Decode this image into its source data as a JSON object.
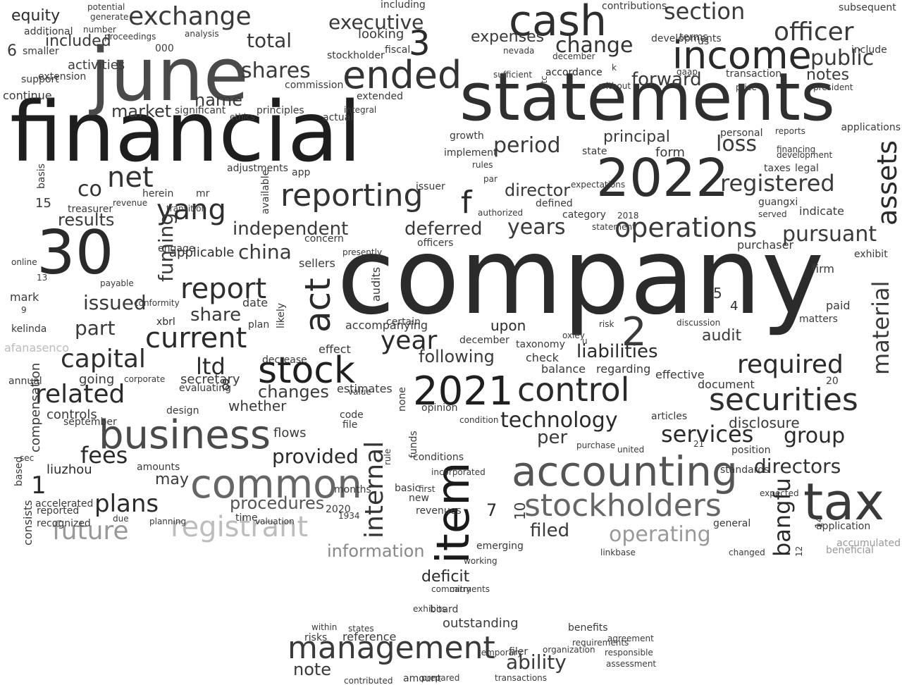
{
  "words": [
    {
      "text": "company",
      "color": "#2b2b2b"
    },
    {
      "text": "financial",
      "color": "#1e1e1e"
    },
    {
      "text": "statements",
      "color": "#2f2f2f"
    },
    {
      "text": "june",
      "color": "#4a4a4a"
    },
    {
      "text": "2022",
      "color": "#2e2e2e"
    },
    {
      "text": "2021",
      "color": "#1f1f1f"
    },
    {
      "text": "30",
      "color": "#2a2a2a"
    },
    {
      "text": "cash",
      "color": "#2e2e2e"
    },
    {
      "text": "income",
      "color": "#2a2a2a"
    },
    {
      "text": "ended",
      "color": "#333333"
    },
    {
      "text": "item",
      "color": "#1a1a1a"
    },
    {
      "text": "tax",
      "color": "#3a3a3a"
    },
    {
      "text": "accounting",
      "color": "#555555"
    },
    {
      "text": "common",
      "color": "#666666"
    },
    {
      "text": "business",
      "color": "#4a4a4a"
    },
    {
      "text": "stock",
      "color": "#1f1f1f"
    },
    {
      "text": "control",
      "color": "#2a2a2a"
    },
    {
      "text": "securities",
      "color": "#2e2e2e"
    },
    {
      "text": "stockholders",
      "color": "#666666"
    },
    {
      "text": "registrant",
      "color": "#bdbdbd"
    },
    {
      "text": "management",
      "color": "#3a3a3a"
    },
    {
      "text": "exchange",
      "color": "#3a3a3a"
    },
    {
      "text": "officer",
      "color": "#3a3a3a"
    },
    {
      "text": "section",
      "color": "#3a3a3a"
    },
    {
      "text": "reporting",
      "color": "#333333"
    },
    {
      "text": "operations",
      "color": "#3a3a3a"
    },
    {
      "text": "executive",
      "color": "#3a3a3a"
    },
    {
      "text": "public",
      "color": "#3a3a3a"
    },
    {
      "text": "change",
      "color": "#333333"
    },
    {
      "text": "net",
      "color": "#333333"
    },
    {
      "text": "yang",
      "color": "#2e2e2e"
    },
    {
      "text": "report",
      "color": "#2e2e2e"
    },
    {
      "text": "current",
      "color": "#2a2a2a"
    },
    {
      "text": "capital",
      "color": "#2e2e2e"
    },
    {
      "text": "related",
      "color": "#2a2a2a"
    },
    {
      "text": "plans",
      "color": "#2a2a2a"
    },
    {
      "text": "fees",
      "color": "#2a2a2a"
    },
    {
      "text": "future",
      "color": "#999999"
    },
    {
      "text": "required",
      "color": "#2a2a2a"
    },
    {
      "text": "registered",
      "color": "#3a3a3a"
    },
    {
      "text": "pursuant",
      "color": "#3a3a3a"
    },
    {
      "text": "act",
      "color": "#2a2a2a"
    },
    {
      "text": "assets",
      "color": "#2a2a2a"
    },
    {
      "text": "material",
      "color": "#3a3a3a"
    },
    {
      "text": "internal",
      "color": "#333333"
    },
    {
      "text": "bangfu",
      "color": "#2a2a2a"
    },
    {
      "text": "year",
      "color": "#2a2a2a"
    },
    {
      "text": "technology",
      "color": "#2a2a2a"
    },
    {
      "text": "services",
      "color": "#2a2a2a"
    },
    {
      "text": "directors",
      "color": "#333333"
    },
    {
      "text": "liabilities",
      "color": "#2a2a2a"
    },
    {
      "text": "independent",
      "color": "#3a3a3a"
    },
    {
      "text": "years",
      "color": "#3a3a3a"
    },
    {
      "text": "operating",
      "color": "#999999"
    },
    {
      "text": "group",
      "color": "#2a2a2a"
    },
    {
      "text": "procedures",
      "color": "#555555"
    },
    {
      "text": "ltd",
      "color": "#2a2a2a"
    },
    {
      "text": "shares",
      "color": "#3a3a3a"
    },
    {
      "text": "loss",
      "color": "#3a3a3a"
    },
    {
      "text": "period",
      "color": "#3a3a3a"
    },
    {
      "text": "total",
      "color": "#3a3a3a"
    },
    {
      "text": "provided",
      "color": "#2a2a2a"
    },
    {
      "text": "ability",
      "color": "#3a3a3a"
    },
    {
      "text": "deferred",
      "color": "#3a3a3a"
    },
    {
      "text": "forward",
      "color": "#3a3a3a"
    },
    {
      "text": "results",
      "color": "#3a3a3a"
    },
    {
      "text": "china",
      "color": "#3a3a3a"
    },
    {
      "text": "changes",
      "color": "#3a3a3a"
    },
    {
      "text": "information",
      "color": "#888888"
    },
    {
      "text": "filed",
      "color": "#3a3a3a"
    },
    {
      "text": "fuming",
      "color": "#3a3a3a"
    },
    {
      "text": "co",
      "color": "#333333"
    },
    {
      "text": "market",
      "color": "#3a3a3a"
    },
    {
      "text": "name",
      "color": "#3a3a3a"
    },
    {
      "text": "director",
      "color": "#3a3a3a"
    },
    {
      "text": "principal",
      "color": "#3a3a3a"
    },
    {
      "text": "expenses",
      "color": "#3a3a3a"
    },
    {
      "text": "equity",
      "color": "#2a2a2a"
    },
    {
      "text": "share",
      "color": "#3a3a3a"
    },
    {
      "text": "part",
      "color": "#3a3a3a"
    },
    {
      "text": "following",
      "color": "#3a3a3a"
    },
    {
      "text": "outstanding",
      "color": "#3a3a3a"
    },
    {
      "text": "deficit",
      "color": "#2a2a2a"
    },
    {
      "text": "note",
      "color": "#3a3a3a"
    },
    {
      "text": "may",
      "color": "#3a3a3a"
    },
    {
      "text": "liuzhou",
      "color": "#2a2a2a"
    },
    {
      "text": "disclosure",
      "color": "#3a3a3a"
    },
    {
      "text": "upon",
      "color": "#2a2a2a"
    },
    {
      "text": "per",
      "color": "#3a3a3a"
    },
    {
      "text": "audit",
      "color": "#3a3a3a"
    },
    {
      "text": "applicable",
      "color": "#2a2a2a"
    },
    {
      "text": "included",
      "color": "#3a3a3a"
    },
    {
      "text": "looking",
      "color": "#3a3a3a"
    },
    {
      "text": "notes",
      "color": "#3a3a3a"
    },
    {
      "text": "whether",
      "color": "#3a3a3a"
    },
    {
      "text": "controls",
      "color": "#3a3a3a"
    },
    {
      "text": "flows",
      "color": "#3a3a3a"
    },
    {
      "text": "compensation",
      "color": "#3a3a3a"
    },
    {
      "text": "activities",
      "color": "#3a3a3a"
    },
    {
      "text": "form",
      "color": "#3a3a3a"
    },
    {
      "text": "issued",
      "color": "#3a3a3a"
    },
    {
      "text": "f",
      "color": "#2a2a2a"
    },
    {
      "text": "2",
      "color": "#3a3a3a"
    },
    {
      "text": "3",
      "color": "#2a2a2a"
    },
    {
      "text": "1",
      "color": "#2a2a2a"
    },
    {
      "text": "7",
      "color": "#2a2a2a"
    },
    {
      "text": "8",
      "color": "#2a2a2a"
    },
    {
      "text": "15",
      "color": "#3a3a3a"
    },
    {
      "text": "5",
      "color": "#3a3a3a"
    },
    {
      "text": "6",
      "color": "#3a3a3a"
    },
    {
      "text": "4",
      "color": "#2a2a2a"
    },
    {
      "text": "10",
      "color": "#3a3a3a"
    },
    {
      "text": "000",
      "color": "#3a3a3a"
    },
    {
      "text": "transaction",
      "color": "#3a3a3a"
    },
    {
      "text": "commission",
      "color": "#3a3a3a"
    },
    {
      "text": "including",
      "color": "#3a3a3a"
    },
    {
      "text": "contributions",
      "color": "#3a3a3a"
    },
    {
      "text": "stockholder",
      "color": "#3a3a3a"
    },
    {
      "text": "fiscal",
      "color": "#3a3a3a"
    },
    {
      "text": "continue",
      "color": "#3a3a3a"
    },
    {
      "text": "accordance",
      "color": "#2a2a2a"
    },
    {
      "text": "state",
      "color": "#3a3a3a"
    },
    {
      "text": "financing",
      "color": "#3a3a3a"
    },
    {
      "text": "reports",
      "color": "#3a3a3a"
    },
    {
      "text": "taxes",
      "color": "#3a3a3a"
    },
    {
      "text": "legal",
      "color": "#3a3a3a"
    },
    {
      "text": "guangxi",
      "color": "#3a3a3a"
    },
    {
      "text": "indicate",
      "color": "#3a3a3a"
    },
    {
      "text": "purchaser",
      "color": "#3a3a3a"
    },
    {
      "text": "firm",
      "color": "#3a3a3a"
    },
    {
      "text": "paid",
      "color": "#3a3a3a"
    },
    {
      "text": "check",
      "color": "#3a3a3a"
    },
    {
      "text": "balance",
      "color": "#3a3a3a"
    },
    {
      "text": "regarding",
      "color": "#3a3a3a"
    },
    {
      "text": "effective",
      "color": "#3a3a3a"
    },
    {
      "text": "document",
      "color": "#3a3a3a"
    },
    {
      "text": "certain",
      "color": "#3a3a3a"
    },
    {
      "text": "accompanying",
      "color": "#3a3a3a"
    },
    {
      "text": "effect",
      "color": "#3a3a3a"
    },
    {
      "text": "estimates",
      "color": "#3a3a3a"
    },
    {
      "text": "opinion",
      "color": "#3a3a3a"
    },
    {
      "text": "secretary",
      "color": "#3a3a3a"
    },
    {
      "text": "going",
      "color": "#3a3a3a"
    },
    {
      "text": "xbrl",
      "color": "#2a2a2a"
    },
    {
      "text": "date",
      "color": "#3a3a3a"
    },
    {
      "text": "concern",
      "color": "#3a3a3a"
    },
    {
      "text": "sellers",
      "color": "#3a3a3a"
    },
    {
      "text": "officers",
      "color": "#3a3a3a"
    },
    {
      "text": "board",
      "color": "#3a3a3a"
    },
    {
      "text": "reference",
      "color": "#3a3a3a"
    },
    {
      "text": "filer",
      "color": "#3a3a3a"
    },
    {
      "text": "temporary",
      "color": "#3a3a3a"
    },
    {
      "text": "benefits",
      "color": "#3a3a3a"
    },
    {
      "text": "within",
      "color": "#3a3a3a"
    },
    {
      "text": "risks",
      "color": "#3a3a3a"
    },
    {
      "text": "amounts",
      "color": "#3a3a3a"
    },
    {
      "text": "september",
      "color": "#3a3a3a"
    },
    {
      "text": "design",
      "color": "#3a3a3a"
    },
    {
      "text": "position",
      "color": "#3a3a3a"
    },
    {
      "text": "standards",
      "color": "#3a3a3a"
    },
    {
      "text": "revenues",
      "color": "#3a3a3a"
    },
    {
      "text": "emerging",
      "color": "#3a3a3a"
    },
    {
      "text": "implement",
      "color": "#3a3a3a"
    },
    {
      "text": "growth",
      "color": "#3a3a3a"
    },
    {
      "text": "december",
      "color": "#3a3a3a"
    },
    {
      "text": "taxonomy",
      "color": "#3a3a3a"
    },
    {
      "text": "based",
      "color": "#3a3a3a"
    },
    {
      "text": "accelerated",
      "color": "#3a3a3a"
    },
    {
      "text": "reported",
      "color": "#3a3a3a"
    },
    {
      "text": "recognized",
      "color": "#3a3a3a"
    },
    {
      "text": "consists",
      "color": "#3a3a3a"
    },
    {
      "text": "time",
      "color": "#3a3a3a"
    },
    {
      "text": "new",
      "color": "#3a3a3a"
    },
    {
      "text": "2020",
      "color": "#3a3a3a"
    },
    {
      "text": "1934",
      "color": "#3a3a3a"
    },
    {
      "text": "changed",
      "color": "#3a3a3a"
    },
    {
      "text": "linkbase",
      "color": "#3a3a3a"
    },
    {
      "text": "beneficial",
      "color": "#999999"
    },
    {
      "text": "accumulated",
      "color": "#999999"
    },
    {
      "text": "afanasenco",
      "color": "#bbbbbb"
    },
    {
      "text": "kelinda",
      "color": "#3a3a3a"
    },
    {
      "text": "mark",
      "color": "#3a3a3a"
    },
    {
      "text": "online",
      "color": "#3a3a3a"
    },
    {
      "text": "support",
      "color": "#3a3a3a"
    },
    {
      "text": "extension",
      "color": "#3a3a3a"
    },
    {
      "text": "smaller",
      "color": "#3a3a3a"
    },
    {
      "text": "additional",
      "color": "#3a3a3a"
    },
    {
      "text": "generate",
      "color": "#3a3a3a"
    },
    {
      "text": "number",
      "color": "#3a3a3a"
    },
    {
      "text": "analysis",
      "color": "#3a3a3a"
    },
    {
      "text": "potential",
      "color": "#3a3a3a"
    },
    {
      "text": "proceedings",
      "color": "#3a3a3a"
    },
    {
      "text": "significant",
      "color": "#3a3a3a"
    },
    {
      "text": "principles",
      "color": "#3a3a3a"
    },
    {
      "text": "ethics",
      "color": "#3a3a3a"
    },
    {
      "text": "actual",
      "color": "#3a3a3a"
    },
    {
      "text": "extended",
      "color": "#3a3a3a"
    },
    {
      "text": "integral",
      "color": "#3a3a3a"
    },
    {
      "text": "developments",
      "color": "#3a3a3a"
    },
    {
      "text": "terms",
      "color": "#3a3a3a"
    },
    {
      "text": "us",
      "color": "#3a3a3a"
    },
    {
      "text": "subsequent",
      "color": "#3a3a3a"
    },
    {
      "text": "include",
      "color": "#3a3a3a"
    },
    {
      "text": "applications",
      "color": "#3a3a3a"
    },
    {
      "text": "personal",
      "color": "#3a3a3a"
    },
    {
      "text": "exhibit",
      "color": "#3a3a3a"
    },
    {
      "text": "matters",
      "color": "#3a3a3a"
    },
    {
      "text": "articles",
      "color": "#3a3a3a"
    },
    {
      "text": "conditions",
      "color": "#3a3a3a"
    },
    {
      "text": "file",
      "color": "#3a3a3a"
    },
    {
      "text": "code",
      "color": "#3a3a3a"
    },
    {
      "text": "value",
      "color": "#3a3a3a"
    },
    {
      "text": "funds",
      "color": "#3a3a3a"
    },
    {
      "text": "issuer",
      "color": "#3a3a3a"
    },
    {
      "text": "app",
      "color": "#3a3a3a"
    },
    {
      "text": "rules",
      "color": "#3a3a3a"
    },
    {
      "text": "defined",
      "color": "#3a3a3a"
    },
    {
      "text": "category",
      "color": "#3a3a3a"
    },
    {
      "text": "expected",
      "color": "#3a3a3a"
    },
    {
      "text": "general",
      "color": "#3a3a3a"
    },
    {
      "text": "united",
      "color": "#3a3a3a"
    },
    {
      "text": "purchase",
      "color": "#3a3a3a"
    },
    {
      "text": "application",
      "color": "#3a3a3a"
    },
    {
      "text": "basis",
      "color": "#3a3a3a"
    },
    {
      "text": "available",
      "color": "#3a3a3a"
    },
    {
      "text": "audits",
      "color": "#3a3a3a"
    },
    {
      "text": "plan",
      "color": "#3a3a3a"
    },
    {
      "text": "likely",
      "color": "#3a3a3a"
    },
    {
      "text": "rule",
      "color": "#3a3a3a"
    },
    {
      "text": "none",
      "color": "#3a3a3a"
    },
    {
      "text": "condition",
      "color": "#3a3a3a"
    },
    {
      "text": "incorporated",
      "color": "#3a3a3a"
    },
    {
      "text": "working",
      "color": "#3a3a3a"
    },
    {
      "text": "commitments",
      "color": "#3a3a3a"
    },
    {
      "text": "states",
      "color": "#3a3a3a"
    },
    {
      "text": "prepared",
      "color": "#3a3a3a"
    },
    {
      "text": "transactions",
      "color": "#3a3a3a"
    },
    {
      "text": "contributed",
      "color": "#3a3a3a"
    },
    {
      "text": "organization",
      "color": "#3a3a3a"
    },
    {
      "text": "responsible",
      "color": "#3a3a3a"
    },
    {
      "text": "assessment",
      "color": "#3a3a3a"
    },
    {
      "text": "agreement",
      "color": "#3a3a3a"
    },
    {
      "text": "requirements",
      "color": "#3a3a3a"
    },
    {
      "text": "adjustments",
      "color": "#3a3a3a"
    },
    {
      "text": "herein",
      "color": "#3a3a3a"
    },
    {
      "text": "mr",
      "color": "#3a3a3a"
    },
    {
      "text": "transition",
      "color": "#3a3a3a"
    },
    {
      "text": "revenue",
      "color": "#3a3a3a"
    },
    {
      "text": "treasurer",
      "color": "#3a3a3a"
    },
    {
      "text": "engage",
      "color": "#3a3a3a"
    },
    {
      "text": "decrease",
      "color": "#3a3a3a"
    },
    {
      "text": "13",
      "color": "#3a3a3a"
    },
    {
      "text": "9",
      "color": "#3a3a3a"
    },
    {
      "text": "payable",
      "color": "#3a3a3a"
    },
    {
      "text": "conformity",
      "color": "#3a3a3a"
    },
    {
      "text": "corporate",
      "color": "#3a3a3a"
    },
    {
      "text": "evaluating",
      "color": "#3a3a3a"
    },
    {
      "text": "annual",
      "color": "#3a3a3a"
    },
    {
      "text": "sec",
      "color": "#3a3a3a"
    },
    {
      "text": "due",
      "color": "#3a3a3a"
    },
    {
      "text": "planning",
      "color": "#3a3a3a"
    },
    {
      "text": "valuation",
      "color": "#3a3a3a"
    },
    {
      "text": "months",
      "color": "#3a3a3a"
    },
    {
      "text": "basic",
      "color": "#3a3a3a"
    },
    {
      "text": "presently",
      "color": "#3a3a3a"
    },
    {
      "text": "first",
      "color": "#3a3a3a"
    },
    {
      "text": "carry",
      "color": "#3a3a3a"
    },
    {
      "text": "exhibits",
      "color": "#3a3a3a"
    },
    {
      "text": "14",
      "color": "#3a3a3a"
    },
    {
      "text": "21",
      "color": "#3a3a3a"
    },
    {
      "text": "20",
      "color": "#3a3a3a"
    },
    {
      "text": "12",
      "color": "#3a3a3a"
    },
    {
      "text": "oxley",
      "color": "#3a3a3a"
    },
    {
      "text": "u",
      "color": "#3a3a3a"
    },
    {
      "text": "risk",
      "color": "#3a3a3a"
    },
    {
      "text": "discussion",
      "color": "#3a3a3a"
    },
    {
      "text": "without",
      "color": "#3a3a3a"
    },
    {
      "text": "development",
      "color": "#3a3a3a"
    },
    {
      "text": "amount",
      "color": "#3a3a3a"
    },
    {
      "text": "nevada",
      "color": "#3a3a3a"
    },
    {
      "text": "sufficient",
      "color": "#3a3a3a"
    },
    {
      "text": "december",
      "color": "#3a3a3a"
    },
    {
      "text": "k",
      "color": "#3a3a3a"
    },
    {
      "text": "otc",
      "color": "#3a3a3a"
    },
    {
      "text": "gaap",
      "color": "#3a3a3a"
    },
    {
      "text": "president",
      "color": "#3a3a3a"
    },
    {
      "text": "price",
      "color": "#3a3a3a"
    },
    {
      "text": "statement",
      "color": "#3a3a3a"
    },
    {
      "text": "2018",
      "color": "#3a3a3a"
    },
    {
      "text": "served",
      "color": "#3a3a3a"
    },
    {
      "text": "expectations",
      "color": "#3a3a3a"
    },
    {
      "text": "par",
      "color": "#3a3a3a"
    },
    {
      "text": "authorized",
      "color": "#3a3a3a"
    },
    {
      "text": "materially",
      "color": "#3a3a3a"
    },
    {
      "text": "allowance",
      "color": "#3a3a3a"
    },
    {
      "text": "identified",
      "color": "#3a3a3a"
    },
    {
      "text": "performance",
      "color": "#3a3a3a"
    }
  ]
}
